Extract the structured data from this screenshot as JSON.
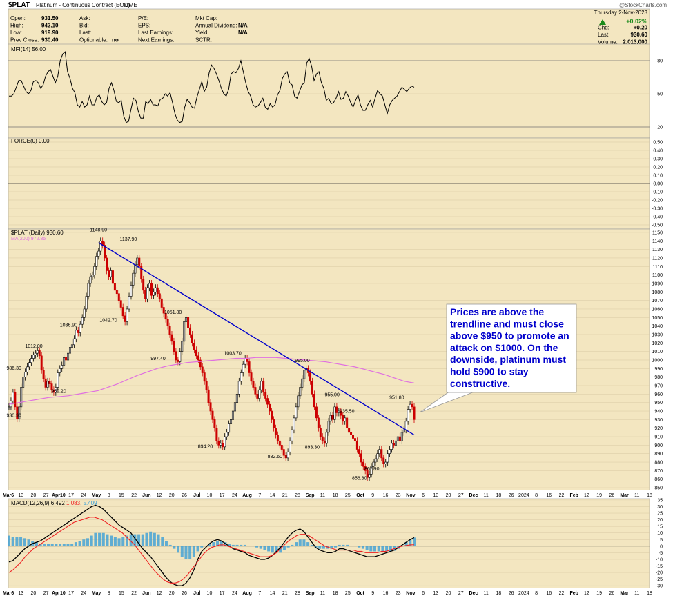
{
  "colors": {
    "panel_bg": "#f3e6c0",
    "page_bg": "#ffffff",
    "grid": "#d9c9a3",
    "mfi": "#000000",
    "trend": "#0000cc",
    "ma": "#e070e0",
    "up": "#000000",
    "down": "#cc0000",
    "macd": "#000000",
    "signal": "#ee2222",
    "hist": "#3b9fd6",
    "callout_text": "#0000cc",
    "green": "#1a8a1a"
  },
  "header": {
    "symbol": "$PLAT",
    "name": "Platinum - Continuous Contract (EOD)",
    "exchange": "CME",
    "watermark": "@StockCharts.com",
    "date": "Thursday  2-Nov-2023",
    "col1": [
      {
        "k": "Open:",
        "v": "931.50"
      },
      {
        "k": "High:",
        "v": "942.10"
      },
      {
        "k": "Low:",
        "v": "919.90"
      },
      {
        "k": "Prev Close:",
        "v": "930.40"
      }
    ],
    "col2": [
      {
        "k": "Ask:",
        "v": ""
      },
      {
        "k": "Bid:",
        "v": ""
      },
      {
        "k": "Last:",
        "v": ""
      },
      {
        "k": "Optionable:",
        "v": "no"
      }
    ],
    "col3": [
      {
        "k": "P/E:",
        "v": ""
      },
      {
        "k": "EPS:",
        "v": ""
      },
      {
        "k": "Last Earnings:",
        "v": ""
      },
      {
        "k": "Next Earnings:",
        "v": ""
      }
    ],
    "col4": [
      {
        "k": "Mkt Cap:",
        "v": ""
      },
      {
        "k": "Annual Dividend:",
        "v": "N/A"
      },
      {
        "k": "Yield:",
        "v": "N/A"
      },
      {
        "k": "SCTR:",
        "v": ""
      }
    ],
    "pct": "+0.02%",
    "right": [
      {
        "k": "Chg:",
        "v": "+0.20"
      },
      {
        "k": "Last:",
        "v": "930.60"
      },
      {
        "k": "Volume:",
        "v": "2,013,000"
      }
    ]
  },
  "chart_data": [
    {
      "type": "line",
      "label": "MFI(14) 56.00",
      "ylim": [
        10,
        95
      ],
      "ticks": [
        20,
        50,
        80
      ],
      "series": [
        {
          "name": "MFI(14)",
          "values": [
            48,
            48,
            50,
            56,
            62,
            62,
            57,
            52,
            50,
            53,
            61,
            62,
            60,
            55,
            58,
            66,
            70,
            72,
            66,
            60,
            66,
            80,
            86,
            88,
            70,
            64,
            55,
            51,
            40,
            38,
            43,
            38,
            40,
            48,
            40,
            40,
            47,
            49,
            43,
            40,
            42,
            55,
            60,
            53,
            43,
            42,
            44,
            30,
            24,
            25,
            36,
            46,
            44,
            34,
            28,
            28,
            43,
            41,
            45,
            40,
            40,
            39,
            45,
            46,
            50,
            48,
            51,
            42,
            32,
            26,
            24,
            25,
            38,
            45,
            42,
            38,
            37,
            47,
            54,
            61,
            52,
            56,
            69,
            76,
            73,
            68,
            62,
            55,
            50,
            48,
            54,
            68,
            70,
            69,
            73,
            80,
            70,
            60,
            52,
            48,
            40,
            38,
            39,
            42,
            46,
            38,
            36,
            41,
            38,
            40,
            49,
            53,
            64,
            68,
            70,
            60,
            58,
            48,
            46,
            52,
            58,
            60,
            78,
            82,
            75,
            62,
            68,
            70,
            60,
            55,
            44,
            46,
            41,
            42,
            46,
            52,
            45,
            46,
            52,
            48,
            42,
            38,
            44,
            49,
            40,
            35,
            35,
            40,
            44,
            38,
            46,
            53,
            50,
            48,
            40,
            32,
            40,
            44,
            46,
            48,
            52,
            56,
            54,
            52,
            55,
            57,
            56
          ]
        }
      ]
    },
    {
      "type": "line",
      "label": "FORCE(0) 0.00",
      "ylim": [
        -0.55,
        0.55
      ],
      "ticks": [
        0.5,
        0.4,
        0.3,
        0.2,
        0.1,
        0.0,
        -0.1,
        -0.2,
        -0.3,
        -0.4,
        -0.5
      ],
      "tick_labels": [
        "0.50",
        "0.40",
        "0.30",
        "0.20",
        "0.10",
        "0.00",
        "-0.10",
        "-0.20",
        "-0.30",
        "-0.40",
        "-0.50"
      ],
      "series": [
        {
          "name": "FORCE(0)",
          "values": [
            0
          ]
        }
      ]
    },
    {
      "type": "line",
      "label": "$PLAT (Daily) 930.60",
      "ma_label": "MA(200) 972.85",
      "ylim": [
        846,
        1154
      ],
      "ticks": [
        850,
        860,
        870,
        880,
        890,
        900,
        910,
        920,
        930,
        940,
        950,
        960,
        970,
        980,
        990,
        1000,
        1010,
        1020,
        1030,
        1040,
        1050,
        1060,
        1070,
        1080,
        1090,
        1100,
        1110,
        1120,
        1130,
        1140,
        1150
      ],
      "x_labels": [
        "Mar6",
        "13",
        "20",
        "27",
        "Apr10",
        "17",
        "24",
        "May",
        "8",
        "15",
        "22",
        "Jun",
        "12",
        "20",
        "26",
        "Jul",
        "10",
        "17",
        "24",
        "Aug",
        "7",
        "14",
        "21",
        "28",
        "Sep",
        "11",
        "18",
        "25",
        "Oct",
        "9",
        "16",
        "23",
        "Nov",
        "6",
        "13",
        "20",
        "27",
        "Dec",
        "11",
        "18",
        "26",
        "2024",
        "8",
        "16",
        "22",
        "Feb",
        "12",
        "19",
        "26",
        "Mar",
        "11",
        "18"
      ],
      "series": [
        {
          "name": "$PLAT",
          "values": [
            945,
            952,
            962,
            945,
            931,
            945,
            968,
            980,
            986,
            992,
            997,
            1002,
            1006,
            1008,
            1011,
            1005,
            988,
            978,
            968,
            975,
            972,
            965,
            962,
            968,
            985,
            990,
            994,
            1003,
            1000,
            1008,
            1015,
            1018,
            1025,
            1035,
            1032,
            1042,
            1050,
            1060,
            1075,
            1090,
            1098,
            1100,
            1110,
            1122,
            1128,
            1140,
            1135,
            1120,
            1105,
            1098,
            1105,
            1090,
            1082,
            1078,
            1070,
            1062,
            1052,
            1045,
            1060,
            1075,
            1088,
            1102,
            1112,
            1120,
            1110,
            1095,
            1082,
            1072,
            1085,
            1090,
            1076,
            1080,
            1085,
            1078,
            1072,
            1062,
            1055,
            1048,
            1040,
            1030,
            1022,
            1010,
            1000,
            998,
            1010,
            1022,
            1045,
            1050,
            1038,
            1030,
            1020,
            1012,
            1005,
            1000,
            992,
            985,
            975,
            965,
            950,
            940,
            930,
            920,
            905,
            900,
            902,
            898,
            910,
            915,
            925,
            930,
            940,
            950,
            960,
            975,
            985,
            995,
            1002,
            998,
            985,
            975,
            968,
            960,
            955,
            965,
            975,
            962,
            955,
            948,
            940,
            930,
            920,
            912,
            905,
            900,
            895,
            888,
            885,
            892,
            905,
            918,
            932,
            945,
            958,
            968,
            978,
            988,
            990,
            985,
            975,
            960,
            945,
            932,
            920,
            910,
            905,
            902,
            915,
            928,
            935,
            930,
            945,
            938,
            940,
            935,
            928,
            932,
            920,
            915,
            912,
            908,
            905,
            895,
            890,
            880,
            875,
            870,
            862,
            866,
            875,
            880,
            884,
            890,
            895,
            885,
            878,
            880,
            890,
            895,
            902,
            900,
            905,
            910,
            905,
            915,
            918,
            928,
            942,
            948,
            945,
            930
          ]
        },
        {
          "name": "MA(200)",
          "values": [
            948,
            950,
            952,
            954,
            956,
            957,
            958,
            960,
            962,
            964,
            968,
            972,
            977,
            982,
            986,
            990,
            993,
            995,
            997,
            998,
            999,
            1000,
            1001,
            1002,
            1002,
            1003,
            1003,
            1003,
            1002,
            1001,
            1000,
            999,
            998,
            996,
            994,
            992,
            989,
            986,
            983,
            979,
            975,
            973
          ]
        }
      ],
      "annotations": [
        {
          "text": "1148.90",
          "x": 36,
          "y": 1148.9
        },
        {
          "text": "1137.90",
          "x": 48,
          "y": 1137.9
        },
        {
          "text": "1036.90",
          "x": 24,
          "y": 1036.9
        },
        {
          "text": "1042.70",
          "x": 40,
          "y": 1042.7
        },
        {
          "text": "1051.80",
          "x": 66,
          "y": 1051.8
        },
        {
          "text": "1012.00",
          "x": 10,
          "y": 1012.0
        },
        {
          "text": "986.30",
          "x": 2,
          "y": 986.3
        },
        {
          "text": "959.20",
          "x": 20,
          "y": 959.2
        },
        {
          "text": "930.90",
          "x": 2,
          "y": 930.9
        },
        {
          "text": "997.40",
          "x": 60,
          "y": 997.4
        },
        {
          "text": "894.20",
          "x": 79,
          "y": 894.2
        },
        {
          "text": "1003.70",
          "x": 90,
          "y": 1003.7
        },
        {
          "text": "882.60",
          "x": 107,
          "y": 882.6
        },
        {
          "text": "995.00",
          "x": 118,
          "y": 995.0
        },
        {
          "text": "893.30",
          "x": 122,
          "y": 893.3
        },
        {
          "text": "955.00",
          "x": 130,
          "y": 955.0
        },
        {
          "text": "935.50",
          "x": 136,
          "y": 935.5
        },
        {
          "text": "856.80",
          "x": 141,
          "y": 856.8
        },
        {
          "text": "867.90",
          "x": 146,
          "y": 867.9
        },
        {
          "text": "951.80",
          "x": 156,
          "y": 951.8
        }
      ],
      "trendline": [
        {
          "x": 36,
          "y": 1138
        },
        {
          "x": 163,
          "y": 912
        }
      ]
    },
    {
      "type": "line",
      "label_prefix": "MACD(12,26,9)",
      "macd_value": "6.492",
      "signal_value": "1.083",
      "hist_value": "5.409",
      "ylim": [
        -32,
        36
      ],
      "ticks": [
        35,
        30,
        25,
        20,
        15,
        10,
        5,
        0,
        -5,
        -10,
        -15,
        -20,
        -25,
        -30
      ],
      "series": [
        {
          "name": "MACD",
          "values": [
            -12,
            -11,
            -8,
            -5,
            -2,
            0,
            2,
            3,
            4,
            6,
            8,
            10,
            12,
            14,
            16,
            18,
            20,
            22,
            24,
            26,
            28,
            30,
            31,
            30,
            28,
            25,
            22,
            19,
            16,
            14,
            12,
            10,
            6,
            2,
            -2,
            -5,
            -8,
            -12,
            -16,
            -20,
            -24,
            -27,
            -29,
            -30,
            -30,
            -28,
            -24,
            -18,
            -10,
            -4,
            -1,
            2,
            4,
            5,
            4,
            2,
            0,
            -2,
            -3,
            -4,
            -5,
            -7,
            -8,
            -9,
            -10,
            -10,
            -9,
            -7,
            -4,
            -1,
            3,
            7,
            10,
            12,
            13,
            11,
            7,
            3,
            -1,
            -3,
            -4,
            -5,
            -5,
            -4,
            -2,
            -2,
            -3,
            -4,
            -5,
            -6,
            -7,
            -8,
            -8,
            -8,
            -7,
            -6,
            -5,
            -4,
            -3,
            -1,
            1,
            3,
            5,
            6.5
          ]
        },
        {
          "name": "Signal",
          "values": [
            -20,
            -18,
            -15,
            -12,
            -8,
            -5,
            -2,
            0,
            2,
            4,
            6,
            8,
            10,
            12,
            14,
            16,
            18,
            19,
            20,
            21,
            22,
            22,
            21,
            20,
            18,
            16,
            14,
            12,
            10,
            7,
            4,
            1,
            -3,
            -7,
            -11,
            -15,
            -19,
            -22,
            -25,
            -27,
            -28,
            -28,
            -27,
            -25,
            -22,
            -18,
            -14,
            -10,
            -6,
            -3,
            -1,
            0,
            1,
            1,
            0,
            -1,
            -2,
            -3,
            -4,
            -5,
            -6,
            -7,
            -8,
            -8,
            -8,
            -7,
            -5,
            -2,
            1,
            4,
            6,
            8,
            9,
            9,
            8,
            6,
            4,
            2,
            0,
            -1,
            -2,
            -3,
            -3,
            -3,
            -3,
            -3,
            -4,
            -4,
            -5,
            -5,
            -5,
            -5,
            -4,
            -4,
            -3,
            -2,
            -1,
            0,
            0.5,
            1,
            1.083
          ]
        }
      ]
    }
  ],
  "callout": {
    "lines": [
      "Prices are above the",
      "trendline and must close",
      "above $950 to promote an",
      "attack on $1000. On the",
      "downside, platinum must",
      "hold $900 to stay",
      "constructive."
    ]
  }
}
